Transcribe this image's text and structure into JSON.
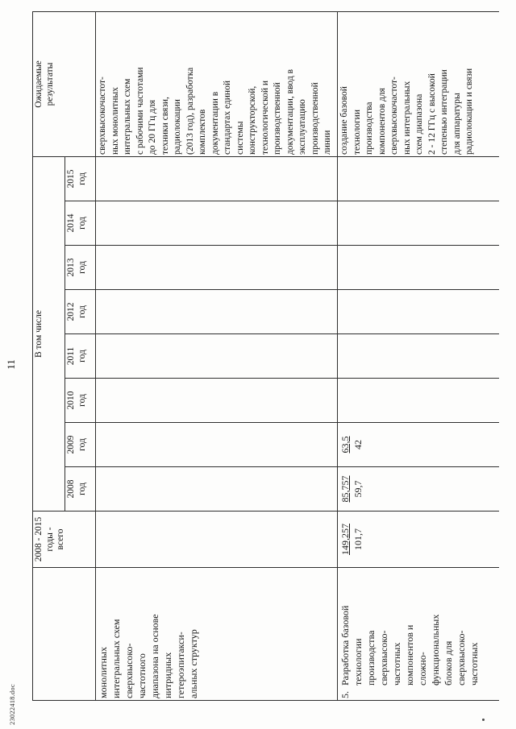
{
  "page": {
    "number": "11",
    "filename": "23022418.doc"
  },
  "table": {
    "header": {
      "col_total": "2008 - 2015 годы - всего",
      "col_including": "В том числе",
      "years": [
        "2008 год",
        "2009 год",
        "2010 год",
        "2011 год",
        "2012 год",
        "2013 год",
        "2014 год",
        "2015 год"
      ],
      "col_expected": "Ожидаемые результаты"
    },
    "row_continuation": {
      "desc_lines": [
        "монолитных",
        "интегральных схем",
        "сверхвысоко-",
        "частотного",
        "диапазона на основе",
        "нитридных",
        "гетероэпитакси-",
        "альных структур"
      ],
      "expected_lines": [
        "сверхвысокочастот-",
        "ных монолитных",
        "интегральных схем",
        "с рабочими частотами",
        "до 20 ГГц для",
        "техники связи,",
        "радиолокации",
        "(2013 год), разработка",
        "комплектов",
        "документации в",
        "стандартах единой",
        "системы",
        "конструкторской,",
        "технологической и",
        "производственной",
        "документации, ввод в",
        "эксплуатацию",
        "производственной",
        "линии"
      ]
    },
    "row_item5": {
      "num": "5.",
      "desc_lines": [
        "Разработка базовой",
        "технологии",
        "производства",
        "сверхвысоко-",
        "частотных",
        "компонентов и",
        "сложно-",
        "функциональных",
        "блоков для",
        "сверхвысоко-",
        "частотных"
      ],
      "total_main": "149,257",
      "total_sub": "101,7",
      "y2008_main": "85,757",
      "y2008_sub": "59,7",
      "y2009_main": "63,5",
      "y2009_sub": "42",
      "expected_lines": [
        "создание базовой",
        "технологии",
        "производства",
        "компонентов для",
        "сверхвысокочастот-",
        "ных интегральных",
        "схем диапазона",
        "2 - 12 ГГц с высокой",
        "степенью интеграции",
        "для аппаратуры",
        "радиолокации и связи"
      ]
    }
  }
}
